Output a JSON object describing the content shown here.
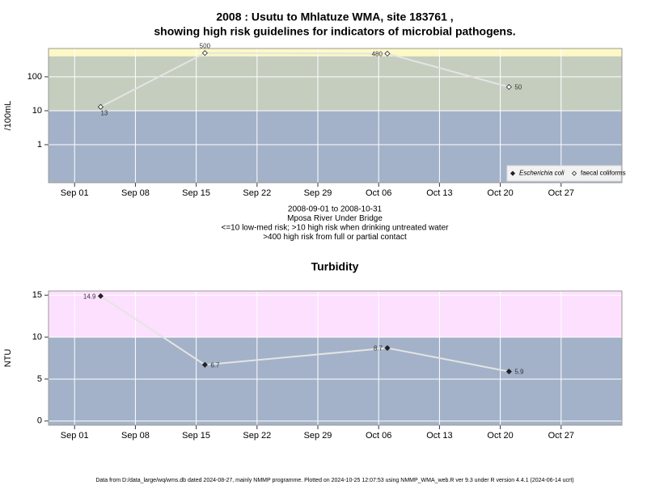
{
  "chart_data": [
    {
      "type": "line",
      "title": "2008 : Usutu to Mhlatuze WMA, site 183761 ,",
      "subtitle": "showing high risk guidelines for indicators of microbial pathogens.",
      "y_label": "/100mL",
      "log_scale": true,
      "x": [
        "2008-09-04",
        "2008-09-16",
        "2008-10-07",
        "2008-10-21"
      ],
      "series": [
        {
          "name": "Escherichia coli",
          "marker": "filled",
          "color": "#222222",
          "values": [
            null,
            null,
            null,
            null
          ]
        },
        {
          "name": "faecal coliforms",
          "marker": "open",
          "color": "#222222",
          "values": [
            13,
            500,
            480,
            50
          ]
        }
      ],
      "xlim": [
        "2008-08-29",
        "2008-11-03"
      ],
      "xticks": [
        {
          "value": "2008-09-01",
          "label": "Sep 01"
        },
        {
          "value": "2008-09-08",
          "label": "Sep 08"
        },
        {
          "value": "2008-09-15",
          "label": "Sep 15"
        },
        {
          "value": "2008-09-22",
          "label": "Sep 22"
        },
        {
          "value": "2008-09-29",
          "label": "Sep 29"
        },
        {
          "value": "2008-10-06",
          "label": "Oct 06"
        },
        {
          "value": "2008-10-13",
          "label": "Oct 13"
        },
        {
          "value": "2008-10-20",
          "label": "Oct 20"
        },
        {
          "value": "2008-10-27",
          "label": "Oct 27"
        }
      ],
      "ylim": [
        0.076,
        680
      ],
      "yticks": [
        1,
        10,
        100
      ],
      "bands": [
        {
          "min": 400,
          "color": "#fdf9c4"
        },
        {
          "min": 10,
          "max": 400,
          "color": "#c5cdbf"
        },
        {
          "max": 10,
          "color": "#a3b2c9"
        }
      ],
      "notes": [
        "2008-09-01 to 2008-10-31",
        "Mposa River Under Bridge",
        "<=10 low-med risk; >10 high risk when drinking untreated water",
        ">400 high risk from full or partial contact"
      ],
      "legend": "lower right",
      "grid": true,
      "line_color": "#e4e4e4"
    },
    {
      "type": "line",
      "title": "Turbidity",
      "y_label": "NTU",
      "log_scale": false,
      "x": [
        "2008-09-04",
        "2008-09-16",
        "2008-10-07",
        "2008-10-21"
      ],
      "series": [
        {
          "name": "Turbidity",
          "marker": "filled",
          "color": "#222222",
          "values": [
            14.9,
            6.7,
            8.7,
            5.9
          ]
        }
      ],
      "xlim": [
        "2008-08-29",
        "2008-11-03"
      ],
      "xticks": [
        {
          "value": "2008-09-01",
          "label": "Sep 01"
        },
        {
          "value": "2008-09-08",
          "label": "Sep 08"
        },
        {
          "value": "2008-09-15",
          "label": "Sep 15"
        },
        {
          "value": "2008-09-22",
          "label": "Sep 22"
        },
        {
          "value": "2008-09-29",
          "label": "Sep 29"
        },
        {
          "value": "2008-10-06",
          "label": "Oct 06"
        },
        {
          "value": "2008-10-13",
          "label": "Oct 13"
        },
        {
          "value": "2008-10-20",
          "label": "Oct 20"
        },
        {
          "value": "2008-10-27",
          "label": "Oct 27"
        }
      ],
      "ylim": [
        -0.5,
        15.5
      ],
      "yticks": [
        0,
        5,
        10,
        15
      ],
      "bands": [
        {
          "min": 10,
          "color": "#fde0fd"
        },
        {
          "max": 10,
          "color": "#a3b2c9"
        }
      ],
      "grid": true,
      "line_color": "#e4e4e4"
    }
  ],
  "footer": "Data from D:/data_large/wq/wms.db dated 2024-08-27, mainly NMMP programme. Plotted on 2024-10-25 12:07:53 using NMMP_WMA_web.R ver 9.3 under R version 4.4.1 (2024-06-14 ucrt)"
}
